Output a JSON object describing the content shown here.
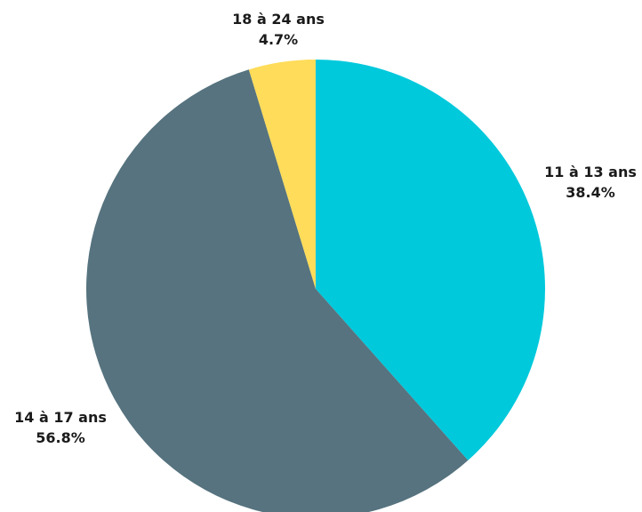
{
  "chart_data": {
    "type": "pie",
    "title": "",
    "start_angle_deg": 0,
    "direction": "clockwise",
    "slices": [
      {
        "label": "11 à 13 ans",
        "value_text": "38.4%",
        "value": 38.4,
        "color": "#00c9dc"
      },
      {
        "label": "14 à 17 ans",
        "value_text": "56.8%",
        "value": 56.8,
        "color": "#56737f"
      },
      {
        "label": "18 à 24 ans",
        "value_text": "4.7%",
        "value": 4.7,
        "color": "#ffdc59"
      }
    ]
  }
}
